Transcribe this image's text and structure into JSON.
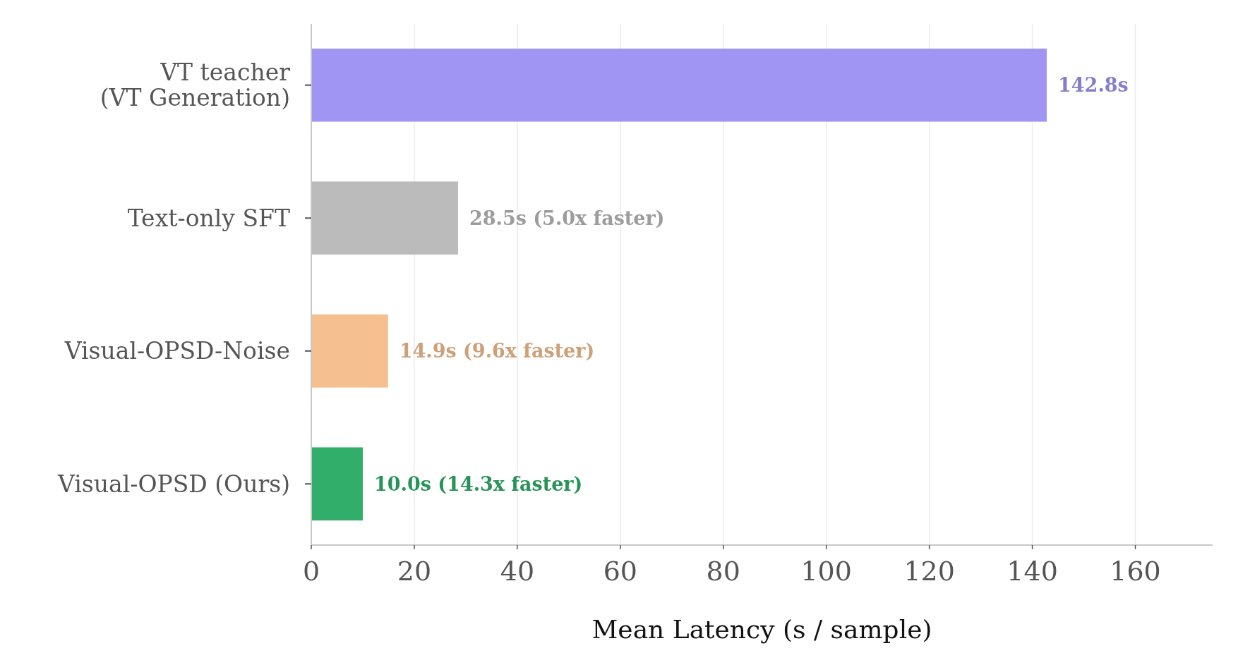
{
  "chart_data": {
    "type": "bar",
    "orientation": "horizontal",
    "xlabel": "Mean Latency (s / sample)",
    "categories": [
      "VT teacher\n(VT Generation)",
      "Text-only SFT",
      "Visual-OPSD-Noise",
      "Visual-OPSD (Ours)"
    ],
    "values": [
      142.8,
      28.5,
      14.9,
      10.0
    ],
    "colors": [
      "#a195f3",
      "#bbbbbb",
      "#f6bf90",
      "#30ae6a"
    ],
    "value_labels": [
      "142.8s",
      "28.5s (5.0x faster)",
      "14.9s (9.6x faster)",
      "10.0s (14.3x faster)"
    ],
    "xlim": [
      0,
      175
    ],
    "xticks": [
      0,
      20,
      40,
      60,
      80,
      100,
      120,
      140,
      160
    ],
    "grid": "x"
  }
}
